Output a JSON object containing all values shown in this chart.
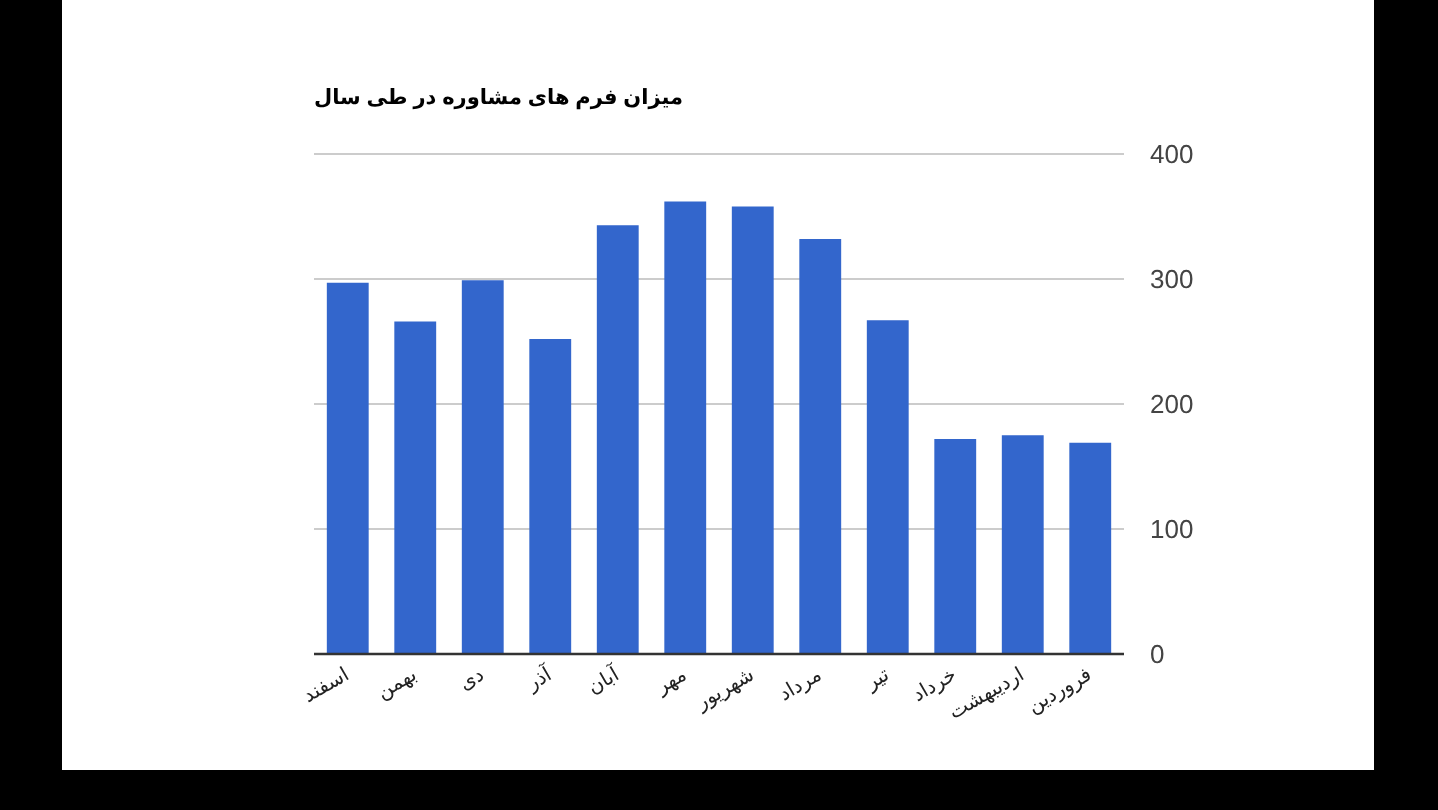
{
  "chart_data": {
    "type": "bar",
    "title": "میزان فرم های مشاوره در طی سال",
    "categories": [
      "اسفند",
      "بهمن",
      "دی",
      "آذر",
      "آبان",
      "مهر",
      "شهریور",
      "مرداد",
      "تیر",
      "خرداد",
      "اردیبهشت",
      "فروردین"
    ],
    "values": [
      297,
      266,
      299,
      252,
      343,
      362,
      358,
      332,
      267,
      172,
      175,
      169
    ],
    "color": "#3366cc",
    "ylim": [
      0,
      400
    ],
    "yticks": [
      0,
      100,
      200,
      300,
      400
    ],
    "grid": "y"
  }
}
